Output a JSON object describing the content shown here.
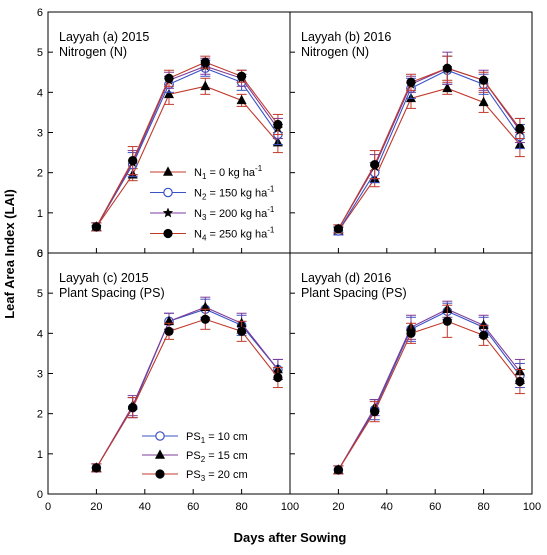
{
  "figure": {
    "xlabel": "Days after Sowing",
    "ylabel": "Leaf Area Index (LAI)"
  },
  "chart_data": [
    {
      "type": "line",
      "panel": "a",
      "title_line1": "Layyah (a) 2015",
      "title_line2": "Nitrogen (N)",
      "x": [
        20,
        35,
        50,
        65,
        80,
        95
      ],
      "xlim": [
        0,
        100
      ],
      "ylim": [
        0,
        6
      ],
      "xticks": [
        "0",
        "20",
        "40",
        "60",
        "80",
        "100"
      ],
      "yticks": [
        "0",
        "1",
        "2",
        "3",
        "4",
        "5",
        "6"
      ],
      "legend_position": "bottom-left",
      "series": [
        {
          "name": "N1",
          "sub": "1",
          "label_rest": "= 0 kg ha",
          "sup": "-1",
          "marker": "triangle",
          "color": "#c0392b",
          "values": [
            0.65,
            1.95,
            3.95,
            4.15,
            3.8,
            2.75
          ],
          "err": [
            0.1,
            0.15,
            0.25,
            0.2,
            0.15,
            0.25
          ]
        },
        {
          "name": "N2",
          "sub": "2",
          "label_rest": "= 150 kg ha",
          "sup": "-1",
          "marker": "circle-open",
          "color": "#3a53c5",
          "values": [
            0.65,
            2.2,
            4.2,
            4.6,
            4.25,
            2.95
          ],
          "err": [
            0.1,
            0.3,
            0.2,
            0.2,
            0.2,
            0.25
          ]
        },
        {
          "name": "N3",
          "sub": "3",
          "label_rest": "= 200 kg ha",
          "sup": "-1",
          "marker": "star",
          "color": "#7d3c98",
          "values": [
            0.65,
            2.25,
            4.3,
            4.65,
            4.35,
            3.1
          ],
          "err": [
            0.1,
            0.3,
            0.2,
            0.2,
            0.2,
            0.25
          ]
        },
        {
          "name": "N4",
          "sub": "4",
          "label_rest": "= 250 kg ha",
          "sup": "-1",
          "marker": "circle-filled",
          "color": "#c0392b",
          "values": [
            0.65,
            2.3,
            4.35,
            4.75,
            4.4,
            3.2
          ],
          "err": [
            0.1,
            0.35,
            0.2,
            0.15,
            0.15,
            0.25
          ]
        }
      ]
    },
    {
      "type": "line",
      "panel": "b",
      "title_line1": "Layyah (b) 2016",
      "title_line2": "Nitrogen (N)",
      "x": [
        20,
        35,
        50,
        65,
        80,
        95
      ],
      "xlim": [
        0,
        100
      ],
      "ylim": [
        0,
        6
      ],
      "series": [
        {
          "name": "N1",
          "marker": "triangle",
          "color": "#c0392b",
          "values": [
            0.55,
            1.85,
            3.85,
            4.1,
            3.75,
            2.7
          ],
          "err": [
            0.1,
            0.2,
            0.25,
            0.15,
            0.25,
            0.3
          ]
        },
        {
          "name": "N2",
          "marker": "circle-open",
          "color": "#3a53c5",
          "values": [
            0.55,
            2.0,
            4.1,
            4.55,
            4.2,
            2.9
          ],
          "err": [
            0.1,
            0.25,
            0.25,
            0.35,
            0.25,
            0.3
          ]
        },
        {
          "name": "N3",
          "marker": "star",
          "color": "#7d3c98",
          "values": [
            0.6,
            2.15,
            4.2,
            4.6,
            4.3,
            3.05
          ],
          "err": [
            0.1,
            0.3,
            0.2,
            0.4,
            0.25,
            0.3
          ]
        },
        {
          "name": "N4",
          "marker": "circle-filled",
          "color": "#c0392b",
          "values": [
            0.6,
            2.2,
            4.25,
            4.6,
            4.3,
            3.1
          ],
          "err": [
            0.1,
            0.35,
            0.2,
            0.3,
            0.2,
            0.25
          ]
        }
      ]
    },
    {
      "type": "line",
      "panel": "c",
      "title_line1": "Layyah (c) 2015",
      "title_line2": "Plant Spacing (PS)",
      "x": [
        20,
        35,
        50,
        65,
        80,
        95
      ],
      "xlim": [
        0,
        100
      ],
      "ylim": [
        0,
        6
      ],
      "xticks": [
        "0",
        "20",
        "40",
        "60",
        "80",
        "100"
      ],
      "yticks": [
        "0",
        "1",
        "2",
        "3",
        "4",
        "5",
        "6"
      ],
      "legend_position": "bottom-center",
      "series": [
        {
          "name": "PS1",
          "sub": "1",
          "label_rest": "= 10 cm",
          "marker": "circle-open",
          "color": "#3a53c5",
          "values": [
            0.65,
            2.15,
            4.3,
            4.6,
            4.2,
            3.1
          ],
          "err": [
            0.1,
            0.25,
            0.2,
            0.25,
            0.25,
            0.25
          ]
        },
        {
          "name": "PS2",
          "sub": "2",
          "label_rest": " =  15 cm",
          "marker": "triangle",
          "color": "#7d3c98",
          "values": [
            0.65,
            2.2,
            4.3,
            4.65,
            4.25,
            3.1
          ],
          "err": [
            0.1,
            0.25,
            0.2,
            0.25,
            0.25,
            0.25
          ]
        },
        {
          "name": "PS3",
          "sub": "3",
          "label_rest": " = 20 cm",
          "marker": "circle-filled",
          "color": "#c0392b",
          "values": [
            0.65,
            2.15,
            4.05,
            4.35,
            4.05,
            2.9
          ],
          "err": [
            0.1,
            0.25,
            0.2,
            0.25,
            0.25,
            0.25
          ]
        }
      ]
    },
    {
      "type": "line",
      "panel": "d",
      "title_line1": "Layyah (d) 2016",
      "title_line2": "Plant Spacing (PS)",
      "x": [
        20,
        35,
        50,
        65,
        80,
        95
      ],
      "xlim": [
        0,
        100
      ],
      "ylim": [
        0,
        6
      ],
      "series": [
        {
          "name": "PS1",
          "marker": "circle-open",
          "color": "#3a53c5",
          "values": [
            0.6,
            2.1,
            4.1,
            4.55,
            4.15,
            2.95
          ],
          "err": [
            0.1,
            0.25,
            0.3,
            0.2,
            0.25,
            0.3
          ]
        },
        {
          "name": "PS2",
          "marker": "triangle",
          "color": "#7d3c98",
          "values": [
            0.6,
            2.15,
            4.15,
            4.6,
            4.2,
            3.05
          ],
          "err": [
            0.1,
            0.2,
            0.3,
            0.2,
            0.25,
            0.3
          ]
        },
        {
          "name": "PS3",
          "marker": "circle-filled",
          "color": "#c0392b",
          "values": [
            0.6,
            2.05,
            4.0,
            4.3,
            3.95,
            2.8
          ],
          "err": [
            0.1,
            0.25,
            0.25,
            0.4,
            0.25,
            0.3
          ]
        }
      ]
    }
  ]
}
